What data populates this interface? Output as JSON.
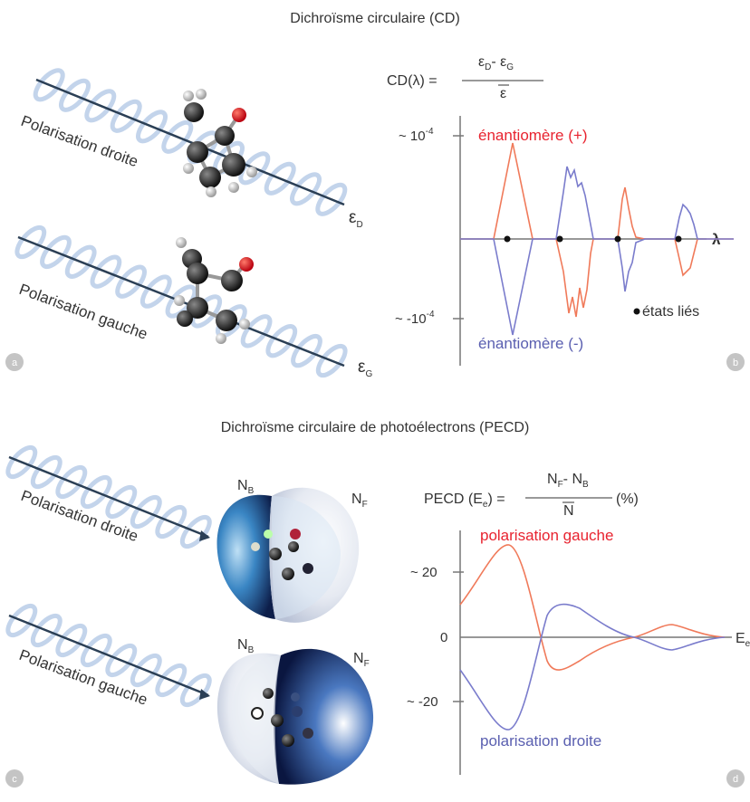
{
  "cd": {
    "title": "Dichroïsme circulaire (CD)",
    "formula_lhs": "CD(λ) =",
    "formula_num_a": "ε",
    "formula_num_a_sub": "D",
    "formula_num_sep": "- ",
    "formula_num_b": "ε",
    "formula_num_b_sub": "G",
    "formula_den": "ε",
    "pol_right": "Polarisation droite",
    "pol_left": "Polarisation gauche",
    "eps_right": "ε",
    "eps_right_sub": "D",
    "eps_left": "ε",
    "eps_left_sub": "G",
    "ytick_top": "~ 10",
    "ytick_top_exp": "-4",
    "ytick_bottom": "~ -10",
    "ytick_bottom_exp": "-4",
    "x_axis_label": "λ",
    "series_plus": "énantiomère (+)",
    "series_minus": "énantiomère (-)",
    "bound_states": "états liés",
    "panel_a": "a",
    "panel_b": "b"
  },
  "pecd": {
    "title": "Dichroïsme circulaire de photoélectrons (PECD)",
    "formula_lhs": "PECD (E",
    "formula_lhs_sub": "e",
    "formula_lhs_end": ") =",
    "formula_num_a": "N",
    "formula_num_a_sub": "F",
    "formula_num_sep": "- N",
    "formula_num_b_sub": "B",
    "formula_den": "N",
    "formula_unit": "(%)",
    "pol_right": "Polarisation droite",
    "pol_left": "Polarisation gauche",
    "nb": "N",
    "nb_sub": "B",
    "nf": "N",
    "nf_sub": "F",
    "ytick_top": "~ 20",
    "ytick_zero": "0",
    "ytick_bottom": "~ -20",
    "x_axis_label": "E",
    "x_axis_label_sub": "e",
    "series_left": "polarisation gauche",
    "series_right": "polarisation droite",
    "panel_c": "c",
    "panel_d": "d"
  },
  "colors": {
    "red_curve": "#f07a5a",
    "blue_curve": "#7a7ccc",
    "red_text": "#e8232f",
    "blue_text": "#5a5fb0",
    "helix": "#b8cce8",
    "axis": "#777777",
    "panel_circle": "#c4c4c4"
  }
}
